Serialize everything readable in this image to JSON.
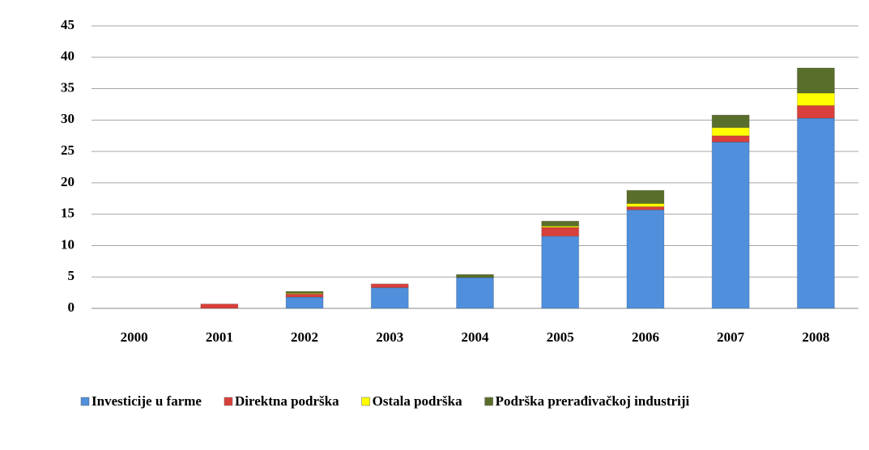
{
  "chart_data": {
    "type": "stacked_bar",
    "categories": [
      "2000",
      "2001",
      "2002",
      "2003",
      "2004",
      "2005",
      "2006",
      "2007",
      "2008"
    ],
    "series": [
      {
        "name": "Investicije u farme",
        "color": "#4f8fdc",
        "values": [
          0,
          0,
          1.8,
          3.3,
          4.9,
          11.5,
          15.7,
          26.5,
          30.3
        ]
      },
      {
        "name": "Direktna podrška",
        "color": "#d9403b",
        "values": [
          0,
          0.7,
          0.5,
          0.6,
          0,
          1.4,
          0.5,
          1.0,
          2.0
        ]
      },
      {
        "name": "Ostala podrška",
        "color": "#ffff00",
        "values": [
          0,
          0,
          0.1,
          0,
          0,
          0.2,
          0.5,
          1.3,
          2.0
        ]
      },
      {
        "name": "Podrška prerađivačkoj industriji",
        "color": "#5a6e2c",
        "values": [
          0,
          0,
          0.3,
          0,
          0.5,
          0.8,
          2.1,
          2.0,
          4.0
        ]
      }
    ],
    "ylim": [
      0,
      45
    ],
    "yticks": [
      0,
      5,
      10,
      15,
      20,
      25,
      30,
      35,
      40,
      45
    ],
    "grid": true,
    "legend": "bottom"
  }
}
